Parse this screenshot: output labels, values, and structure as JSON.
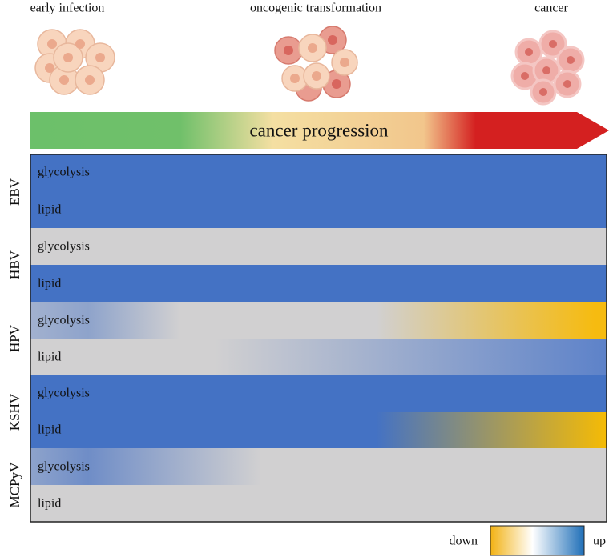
{
  "stages": [
    "early infection",
    "oncogenic transformation",
    "cancer"
  ],
  "progression_label": "cancer progression",
  "groups": [
    {
      "virus": "EBV",
      "rows": [
        "glycolysis",
        "lipid"
      ]
    },
    {
      "virus": "HBV",
      "rows": [
        "glycolysis",
        "lipid"
      ]
    },
    {
      "virus": "HPV",
      "rows": [
        "glycolysis",
        "lipid"
      ]
    },
    {
      "virus": "KSHV",
      "rows": [
        "glycolysis",
        "lipid"
      ]
    },
    {
      "virus": "MCPyV",
      "rows": [
        "glycolysis",
        "lipid"
      ]
    }
  ],
  "legend": {
    "low": "down",
    "high": "up"
  }
}
